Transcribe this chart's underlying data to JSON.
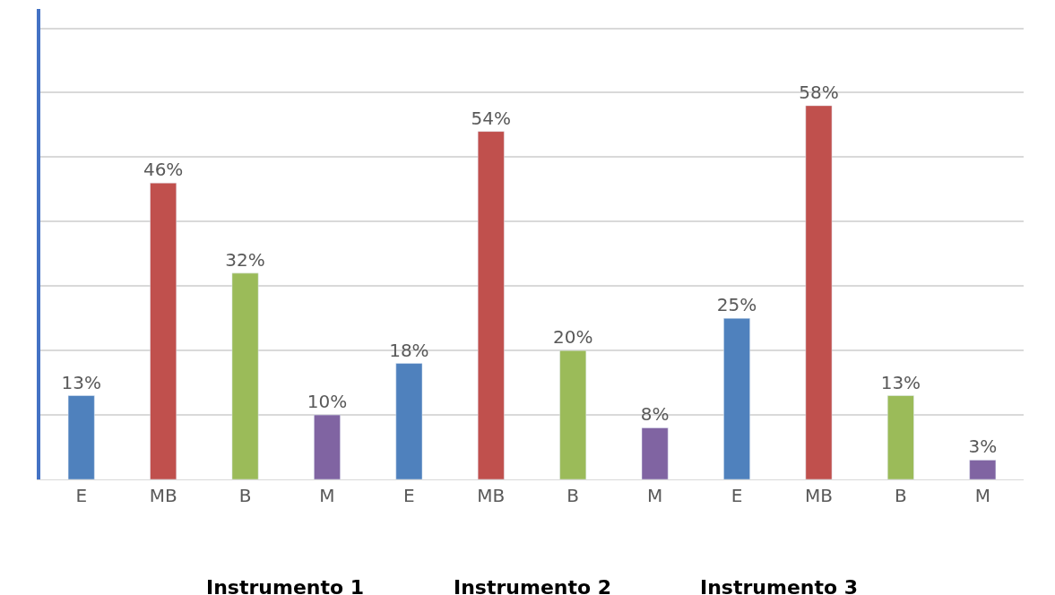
{
  "chart_data": {
    "type": "bar",
    "categories": [
      "E",
      "MB",
      "B",
      "M",
      "E",
      "MB",
      "B",
      "M",
      "E",
      "MB",
      "B",
      "M"
    ],
    "values": [
      13,
      46,
      32,
      10,
      18,
      54,
      20,
      8,
      25,
      58,
      13,
      3
    ],
    "value_labels": [
      "13%",
      "46%",
      "32%",
      "10%",
      "18%",
      "54%",
      "20%",
      "8%",
      "25%",
      "58%",
      "13%",
      "3%"
    ],
    "colors": [
      "#4f81bd",
      "#c0504d",
      "#9bbb59",
      "#8064a2",
      "#4f81bd",
      "#c0504d",
      "#9bbb59",
      "#8064a2",
      "#4f81bd",
      "#c0504d",
      "#9bbb59",
      "#8064a2"
    ],
    "ylim": [
      0,
      73
    ],
    "yticks": [
      {
        "value": 0,
        "label": null
      },
      {
        "value": 10,
        "label": null
      },
      {
        "value": 20,
        "label": null
      },
      {
        "value": 30,
        "label": null
      },
      {
        "value": 40,
        "label": null
      },
      {
        "value": 50,
        "label": null
      },
      {
        "value": 60,
        "label": null
      },
      {
        "value": 70,
        "label": null
      }
    ],
    "tick_labels": "x",
    "grid": "y",
    "legend": false,
    "annotations": [
      "Instrumento 1",
      "Instrumento 2",
      "Instrumento 3"
    ]
  }
}
